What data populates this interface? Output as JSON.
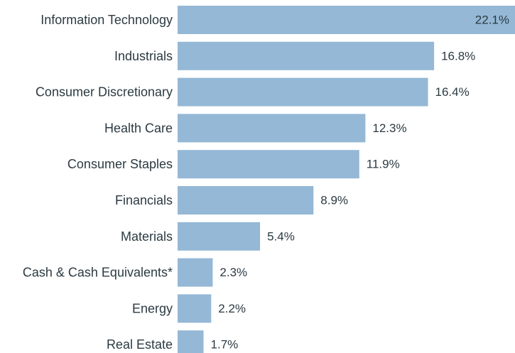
{
  "chart_data": {
    "type": "bar",
    "orientation": "horizontal",
    "categories": [
      "Information Technology",
      "Industrials",
      "Consumer Discretionary",
      "Health Care",
      "Consumer Staples",
      "Financials",
      "Materials",
      "Cash & Cash Equivalents*",
      "Energy",
      "Real Estate"
    ],
    "values": [
      22.1,
      16.8,
      16.4,
      12.3,
      11.9,
      8.9,
      5.4,
      2.3,
      2.2,
      1.7
    ],
    "value_labels": [
      "22.1%",
      "16.8%",
      "16.4%",
      "12.3%",
      "11.9%",
      "8.9%",
      "5.4%",
      "2.3%",
      "2.2%",
      "1.7%"
    ],
    "title": "",
    "xlabel": "",
    "ylabel": "",
    "xlim": [
      0,
      22.1
    ],
    "grid": false,
    "legend": "none",
    "bar_color": "#94b8d6",
    "text_color": "#2b3a42"
  }
}
